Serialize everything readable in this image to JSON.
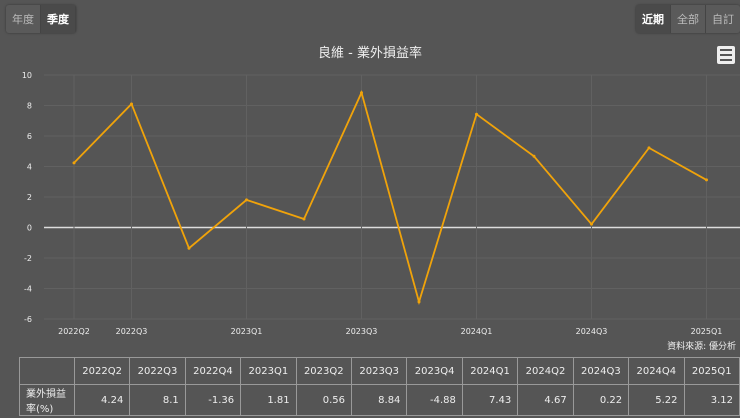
{
  "period_buttons": [
    "年度",
    "季度"
  ],
  "period_active": 1,
  "range_buttons": [
    "近期",
    "全部",
    "自訂"
  ],
  "range_active": 0,
  "source": "資料來源: 優分析",
  "menu_icon": "hamburger-menu-icon",
  "chart_data": {
    "type": "line",
    "title": "良維 - 業外損益率",
    "categories": [
      "2022Q2",
      "2022Q3",
      "2022Q4",
      "2023Q1",
      "2023Q2",
      "2023Q3",
      "2023Q4",
      "2024Q1",
      "2024Q2",
      "2024Q3",
      "2024Q4",
      "2025Q1"
    ],
    "x_tick_labels": [
      "2022Q2",
      "2022Q3",
      "2023Q1",
      "2023Q3",
      "2024Q1",
      "2024Q3",
      "2025Q1"
    ],
    "series": [
      {
        "name": "業外損益率(%)",
        "values": [
          4.24,
          8.1,
          -1.36,
          1.81,
          0.56,
          8.84,
          -4.88,
          7.43,
          4.67,
          0.22,
          5.22,
          3.12
        ],
        "color": "#f0a30a"
      }
    ],
    "ylim": [
      -6,
      10
    ],
    "y_ticks": [
      -6,
      -4,
      -2,
      0,
      2,
      4,
      6,
      8,
      10
    ],
    "grid": true
  },
  "table": {
    "row_label": "業外損益率(%)",
    "values": [
      "4.24",
      "8.1",
      "-1.36",
      "1.81",
      "0.56",
      "8.84",
      "-4.88",
      "7.43",
      "4.67",
      "0.22",
      "5.22",
      "3.12"
    ]
  }
}
